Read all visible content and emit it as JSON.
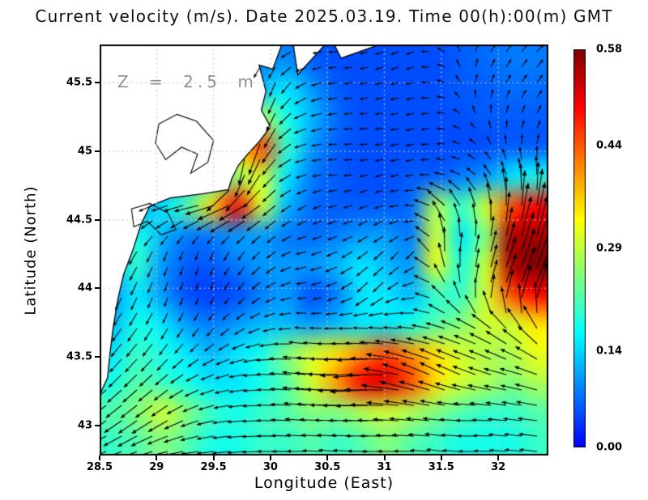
{
  "title": "Current velocity (m/s). Date 2025.03.19. Time 00(h):00(m) GMT",
  "annotation": "Z = 2.5 m",
  "axes": {
    "x_label": "Longitude (East)",
    "y_label": "Latitude (North)",
    "x_tick_labels": [
      "28.5",
      "29",
      "29.5",
      "30",
      "30.5",
      "31",
      "31.5",
      "32"
    ],
    "x_tick_values": [
      28.5,
      29,
      29.5,
      30,
      30.5,
      31,
      31.5,
      32
    ],
    "y_tick_labels": [
      "45.5",
      "45",
      "44.5",
      "44",
      "43.5",
      "43"
    ],
    "y_tick_values": [
      45.5,
      45,
      44.5,
      44,
      43.5,
      43
    ],
    "lon_range": [
      28.5,
      32.44
    ],
    "lat_range": [
      42.78,
      45.78
    ],
    "grid_style": "dotted",
    "grid_color": "#c6c6c6"
  },
  "colorbar": {
    "min": 0.0,
    "max": 0.58,
    "tick_labels": [
      "0.00",
      "0.14",
      "0.29",
      "0.44",
      "0.58"
    ],
    "tick_values": [
      0.0,
      0.14,
      0.29,
      0.44,
      0.58
    ],
    "colormap": "jet-blue-to-darkred"
  },
  "chart_data": {
    "type": "heatmap",
    "subtype": "vector-field-over-speed-heatmap",
    "title": "Current velocity (m/s). Date 2025.03.19. Time 00(h):00(m) GMT",
    "xlabel": "Longitude (East)",
    "ylabel": "Latitude (North)",
    "depth_annotation": "Z = 2.5 m",
    "units": "m/s",
    "xlim": [
      28.5,
      32.44
    ],
    "ylim": [
      42.78,
      45.78
    ],
    "speed_range": [
      0.0,
      0.58
    ],
    "speed_grid": {
      "lons": [
        28.5,
        28.73,
        28.96,
        29.2,
        29.43,
        29.66,
        29.89,
        30.12,
        30.36,
        30.59,
        30.82,
        31.05,
        31.28,
        31.51,
        31.75,
        31.98,
        32.21,
        32.44
      ],
      "lats": [
        45.78,
        45.55,
        45.32,
        45.09,
        44.86,
        44.63,
        44.4,
        44.16,
        43.93,
        43.7,
        43.47,
        43.24,
        43.01,
        42.78
      ],
      "values": [
        [
          0.05,
          0.05,
          0.05,
          0.05,
          0.05,
          0.06,
          0.08,
          0.09,
          0.06,
          0.05,
          0.05,
          0.05,
          0.05,
          0.05,
          0.06,
          0.07,
          0.08,
          0.08
        ],
        [
          0.05,
          0.05,
          0.05,
          0.05,
          0.05,
          0.08,
          0.12,
          0.15,
          0.1,
          0.06,
          0.05,
          0.05,
          0.05,
          0.05,
          0.06,
          0.06,
          0.07,
          0.07
        ],
        [
          0.05,
          0.05,
          0.05,
          0.05,
          0.06,
          0.12,
          0.28,
          0.18,
          0.12,
          0.07,
          0.05,
          0.05,
          0.05,
          0.05,
          0.05,
          0.06,
          0.06,
          0.06
        ],
        [
          0.05,
          0.05,
          0.05,
          0.06,
          0.1,
          0.35,
          0.46,
          0.2,
          0.1,
          0.06,
          0.05,
          0.05,
          0.05,
          0.05,
          0.05,
          0.05,
          0.06,
          0.06
        ],
        [
          0.05,
          0.06,
          0.08,
          0.1,
          0.18,
          0.26,
          0.3,
          0.15,
          0.08,
          0.06,
          0.05,
          0.05,
          0.06,
          0.06,
          0.08,
          0.1,
          0.15,
          0.18
        ],
        [
          0.08,
          0.1,
          0.15,
          0.22,
          0.36,
          0.5,
          0.3,
          0.12,
          0.07,
          0.06,
          0.06,
          0.06,
          0.07,
          0.28,
          0.2,
          0.3,
          0.45,
          0.5
        ],
        [
          0.1,
          0.18,
          0.12,
          0.08,
          0.08,
          0.1,
          0.1,
          0.08,
          0.07,
          0.08,
          0.1,
          0.1,
          0.08,
          0.3,
          0.15,
          0.25,
          0.55,
          0.55
        ],
        [
          0.12,
          0.2,
          0.1,
          0.06,
          0.06,
          0.08,
          0.1,
          0.1,
          0.1,
          0.12,
          0.15,
          0.12,
          0.1,
          0.32,
          0.18,
          0.3,
          0.55,
          0.58
        ],
        [
          0.1,
          0.15,
          0.1,
          0.05,
          0.04,
          0.05,
          0.08,
          0.1,
          0.05,
          0.08,
          0.15,
          0.15,
          0.12,
          0.2,
          0.2,
          0.3,
          0.45,
          0.5
        ],
        [
          0.12,
          0.18,
          0.15,
          0.1,
          0.08,
          0.1,
          0.12,
          0.12,
          0.1,
          0.12,
          0.15,
          0.15,
          0.18,
          0.22,
          0.25,
          0.3,
          0.3,
          0.35
        ],
        [
          0.15,
          0.2,
          0.18,
          0.15,
          0.12,
          0.15,
          0.18,
          0.25,
          0.3,
          0.35,
          0.4,
          0.45,
          0.4,
          0.35,
          0.3,
          0.28,
          0.28,
          0.32
        ],
        [
          0.18,
          0.22,
          0.2,
          0.18,
          0.15,
          0.15,
          0.18,
          0.22,
          0.3,
          0.4,
          0.5,
          0.52,
          0.45,
          0.35,
          0.3,
          0.28,
          0.25,
          0.28
        ],
        [
          0.22,
          0.25,
          0.3,
          0.25,
          0.2,
          0.18,
          0.2,
          0.22,
          0.25,
          0.25,
          0.28,
          0.3,
          0.28,
          0.25,
          0.22,
          0.2,
          0.2,
          0.22
        ],
        [
          0.2,
          0.22,
          0.25,
          0.22,
          0.18,
          0.18,
          0.2,
          0.2,
          0.22,
          0.2,
          0.22,
          0.25,
          0.22,
          0.2,
          0.18,
          0.18,
          0.18,
          0.2
        ]
      ]
    },
    "direction_grid": {
      "lons": [
        28.5,
        28.8,
        29.11,
        29.41,
        29.71,
        30.02,
        30.32,
        30.62,
        30.92,
        31.23,
        31.53,
        31.83,
        32.14,
        32.44
      ],
      "lats": [
        45.78,
        45.48,
        45.18,
        44.88,
        44.58,
        44.28,
        43.98,
        43.68,
        43.38,
        43.08,
        42.78
      ],
      "u": [
        [
          -0.5,
          -0.5,
          -0.5,
          -0.5,
          -0.5,
          -0.5,
          -0.8,
          -0.9,
          -0.8,
          -0.7,
          -0.5,
          0.3,
          0.6,
          0.7
        ],
        [
          -0.5,
          -0.5,
          -0.5,
          -0.5,
          -0.4,
          -0.3,
          -0.7,
          -0.9,
          -0.9,
          -0.8,
          -0.6,
          0.2,
          0.5,
          0.6
        ],
        [
          -0.5,
          -0.5,
          -0.5,
          -0.3,
          0.1,
          -0.4,
          -0.8,
          -0.9,
          -0.9,
          -0.8,
          -0.7,
          -0.3,
          0.2,
          0.4
        ],
        [
          -0.5,
          -0.5,
          -0.5,
          -0.4,
          -0.2,
          -0.5,
          -0.8,
          -0.9,
          -0.8,
          -0.8,
          -0.8,
          -0.6,
          -0.3,
          0.0
        ],
        [
          -0.6,
          -0.7,
          -0.9,
          -1.0,
          -0.9,
          -0.6,
          -0.7,
          -0.8,
          -0.7,
          -0.8,
          -0.5,
          -0.2,
          0.1,
          0.2
        ],
        [
          -0.5,
          -0.5,
          -0.4,
          -0.3,
          -0.5,
          -0.6,
          -0.8,
          -0.6,
          -0.5,
          -0.4,
          0.0,
          0.2,
          0.3,
          0.3
        ],
        [
          -0.4,
          -0.4,
          -0.3,
          -0.2,
          -0.4,
          -0.5,
          -0.7,
          -0.5,
          -0.3,
          -0.6,
          -0.4,
          0.2,
          0.4,
          0.4
        ],
        [
          -0.6,
          -0.6,
          -0.5,
          -0.5,
          -0.6,
          -0.8,
          -0.9,
          -0.9,
          -0.9,
          -0.9,
          -0.8,
          -0.7,
          -0.5,
          -0.4
        ],
        [
          -0.7,
          -0.7,
          -0.7,
          -0.8,
          -0.9,
          -1.0,
          -1.0,
          -1.0,
          -1.0,
          -0.9,
          -0.8,
          -0.8,
          -0.8,
          -0.7
        ],
        [
          -0.8,
          -0.8,
          -0.8,
          -0.9,
          -1.0,
          -1.0,
          -1.0,
          -1.0,
          -1.0,
          -1.0,
          -0.9,
          -0.9,
          -0.8,
          -0.8
        ],
        [
          -0.8,
          -0.8,
          -0.9,
          -0.9,
          -1.0,
          -1.0,
          -1.0,
          -1.0,
          -1.0,
          -1.0,
          -0.9,
          -0.9,
          -0.9,
          -0.9
        ]
      ],
      "v": [
        [
          -0.3,
          -0.3,
          -0.3,
          -0.3,
          -0.5,
          -0.5,
          -0.2,
          0.0,
          -0.3,
          -0.3,
          0.3,
          0.6,
          0.8,
          0.7
        ],
        [
          -0.3,
          -0.3,
          -0.3,
          -0.5,
          -0.8,
          -0.9,
          -0.4,
          -0.1,
          -0.2,
          -0.2,
          0.2,
          0.7,
          0.8,
          0.8
        ],
        [
          -0.3,
          -0.3,
          -0.3,
          -0.5,
          -1.0,
          -0.8,
          -0.3,
          -0.1,
          0.0,
          -0.2,
          0.0,
          0.5,
          0.8,
          0.8
        ],
        [
          -0.3,
          -0.3,
          -0.3,
          -0.4,
          -1.0,
          -0.6,
          -0.2,
          0.0,
          -0.2,
          -0.2,
          0.1,
          0.4,
          0.9,
          1.0
        ],
        [
          -0.5,
          -0.4,
          -0.3,
          -0.2,
          -0.4,
          -0.5,
          -0.4,
          -0.2,
          -0.3,
          0.0,
          0.5,
          0.8,
          1.0,
          1.0
        ],
        [
          -0.8,
          -0.8,
          -0.9,
          -0.9,
          -0.7,
          -0.5,
          -0.2,
          -0.3,
          -0.4,
          -0.5,
          0.8,
          0.9,
          1.0,
          1.0
        ],
        [
          -0.9,
          -0.9,
          -0.9,
          -0.6,
          -0.5,
          -0.3,
          -0.1,
          -0.2,
          -0.4,
          -0.2,
          0.5,
          0.9,
          1.0,
          1.0
        ],
        [
          -0.8,
          -0.8,
          -0.8,
          -0.6,
          -0.4,
          -0.2,
          0.1,
          0.0,
          0.1,
          0.1,
          0.2,
          0.3,
          0.5,
          0.6
        ],
        [
          -0.7,
          -0.7,
          -0.6,
          -0.4,
          -0.2,
          0.0,
          0.1,
          0.0,
          -0.1,
          0.3,
          0.4,
          0.3,
          0.2,
          0.3
        ],
        [
          -0.6,
          -0.6,
          -0.5,
          -0.3,
          -0.1,
          0.0,
          0.1,
          0.0,
          0.0,
          0.1,
          0.1,
          0.0,
          0.1,
          0.1
        ],
        [
          -0.3,
          -0.3,
          -0.2,
          -0.1,
          -0.1,
          0.0,
          0.0,
          0.1,
          0.0,
          0.0,
          0.1,
          0.0,
          0.1,
          0.1
        ]
      ]
    },
    "coastline": [
      [
        30.1,
        45.78
      ],
      [
        30.02,
        45.6
      ],
      [
        29.9,
        45.63
      ],
      [
        29.96,
        45.44
      ],
      [
        29.92,
        45.3
      ],
      [
        30.0,
        45.18
      ],
      [
        29.9,
        45.07
      ],
      [
        29.8,
        44.98
      ],
      [
        29.72,
        44.9
      ],
      [
        29.66,
        44.8
      ],
      [
        29.63,
        44.72
      ],
      [
        29.4,
        44.69
      ],
      [
        29.12,
        44.66
      ],
      [
        28.94,
        44.6
      ],
      [
        28.86,
        44.46
      ],
      [
        28.8,
        44.3
      ],
      [
        28.71,
        44.1
      ],
      [
        28.66,
        43.92
      ],
      [
        28.62,
        43.72
      ],
      [
        28.59,
        43.52
      ],
      [
        28.57,
        43.35
      ],
      [
        28.5,
        43.22
      ]
    ],
    "land_wedges": [
      [
        [
          30.2,
          45.78
        ],
        [
          30.48,
          45.78
        ],
        [
          30.24,
          45.56
        ]
      ],
      [
        [
          30.56,
          45.78
        ],
        [
          30.96,
          45.78
        ],
        [
          30.62,
          45.68
        ]
      ]
    ],
    "lakes": [
      [
        [
          29.02,
          45.2
        ],
        [
          29.18,
          45.27
        ],
        [
          29.35,
          45.22
        ],
        [
          29.5,
          45.08
        ],
        [
          29.45,
          44.92
        ],
        [
          29.3,
          44.84
        ],
        [
          29.36,
          44.98
        ],
        [
          29.22,
          45.03
        ],
        [
          29.08,
          44.94
        ],
        [
          28.99,
          45.06
        ]
      ],
      [
        [
          28.78,
          44.58
        ],
        [
          28.94,
          44.62
        ],
        [
          29.1,
          44.55
        ],
        [
          29.17,
          44.43
        ],
        [
          29.04,
          44.39
        ],
        [
          28.92,
          44.49
        ],
        [
          28.8,
          44.45
        ]
      ]
    ],
    "land_color": "#ffffff",
    "coast_color": "#000000",
    "arrow_color": "#000000"
  }
}
